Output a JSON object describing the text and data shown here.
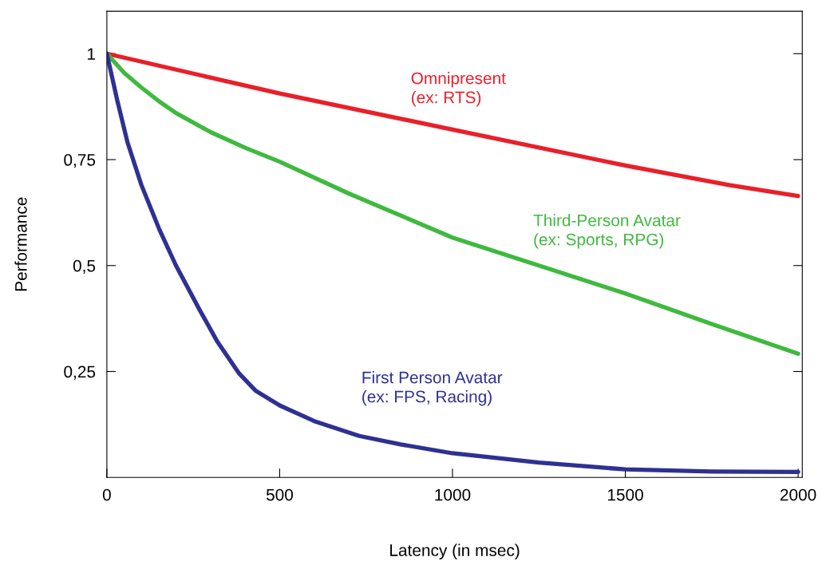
{
  "chart_data": {
    "type": "line",
    "xlabel": "Latency (in msec)",
    "ylabel": "Performance",
    "xlim": [
      0,
      2012
    ],
    "ylim": [
      0,
      1.1
    ],
    "xticks": [
      0,
      500,
      1000,
      1500,
      2000
    ],
    "yticks": [
      {
        "value": 0.25,
        "label": "0,25"
      },
      {
        "value": 0.5,
        "label": "0,5"
      },
      {
        "value": 0.75,
        "label": "0,75"
      },
      {
        "value": 1,
        "label": "1"
      }
    ],
    "grid": false,
    "legend": false,
    "marker": "none",
    "line_style": "solid",
    "series": [
      {
        "name": "Omnipresent\n(ex: RTS)",
        "color": "#e8202a",
        "x": [
          0,
          500,
          1000,
          1500,
          1800,
          2000
        ],
        "values": [
          1,
          0.906,
          0.821,
          0.736,
          0.69,
          0.664
        ]
      },
      {
        "name": "Third-Person Avatar\n(ex: Sports, RPG)",
        "color": "#3fb93f",
        "x": [
          0,
          50,
          100,
          152,
          200,
          300,
          400,
          500,
          700,
          1000,
          1250,
          1500,
          1750,
          2000
        ],
        "values": [
          1,
          0.955,
          0.92,
          0.887,
          0.86,
          0.815,
          0.778,
          0.745,
          0.67,
          0.566,
          0.5,
          0.434,
          0.362,
          0.292
        ]
      },
      {
        "name": "First Person Avatar\n(ex: FPS, Racing)",
        "color": "#2e3192",
        "x": [
          0,
          30,
          60,
          100,
          152,
          200,
          268,
          320,
          383,
          430,
          500,
          600,
          730,
          850,
          1000,
          1250,
          1500,
          1750,
          2000
        ],
        "values": [
          1,
          0.89,
          0.79,
          0.69,
          0.585,
          0.5,
          0.396,
          0.32,
          0.245,
          0.205,
          0.17,
          0.133,
          0.098,
          0.078,
          0.057,
          0.035,
          0.019,
          0.014,
          0.013
        ]
      }
    ]
  }
}
